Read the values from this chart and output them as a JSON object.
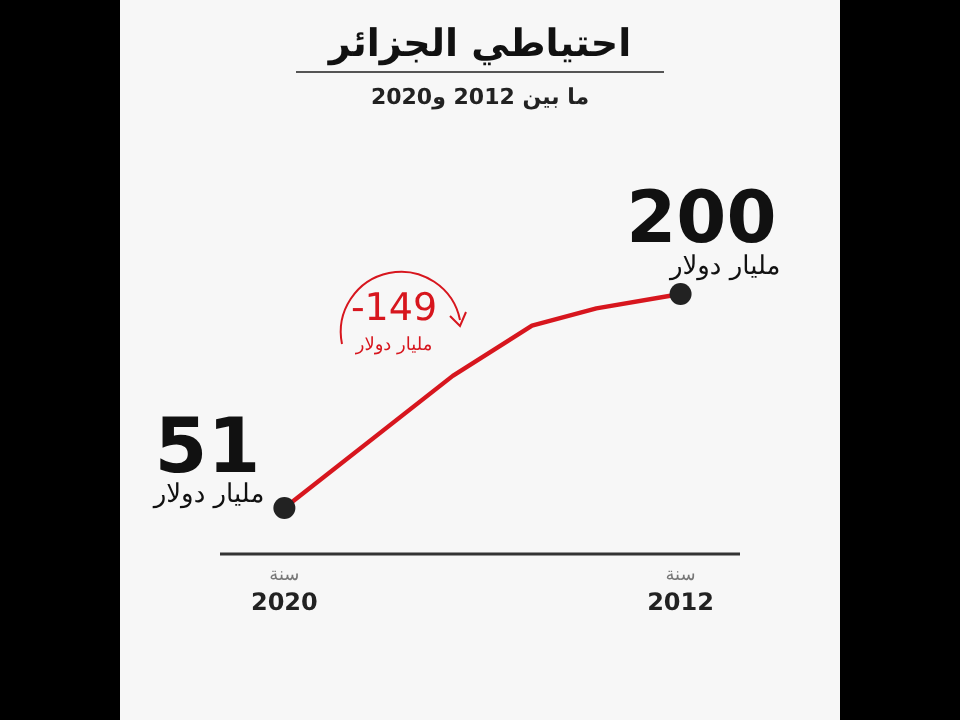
{
  "chart_data": {
    "type": "line",
    "title": "احتياطي الجزائر",
    "subtitle": "ما بين 2012 و2020",
    "x": [
      2020,
      2016.6,
      2015,
      2013.7,
      2012
    ],
    "xlim": [
      2021.3,
      2010.8
    ],
    "xticks": [
      2020,
      2012
    ],
    "series": [
      {
        "type": "line",
        "color": "#d7161e",
        "values": [
          51,
          143,
          178,
          190,
          200
        ],
        "marker": "none"
      },
      {
        "type": "scatter",
        "color": "#222222",
        "x": [
          2020,
          2012
        ],
        "values": [
          51,
          200
        ],
        "marker": "circle",
        "value_labels": [
          "51",
          "200"
        ]
      }
    ],
    "annotations": [
      {
        "text": "مليار دولار",
        "x": 2020,
        "y": 51
      },
      {
        "text": "مليار دولار",
        "x": 2012,
        "y": 200
      },
      "-149",
      "مليار دولار",
      "سنة",
      "سنة"
    ]
  }
}
